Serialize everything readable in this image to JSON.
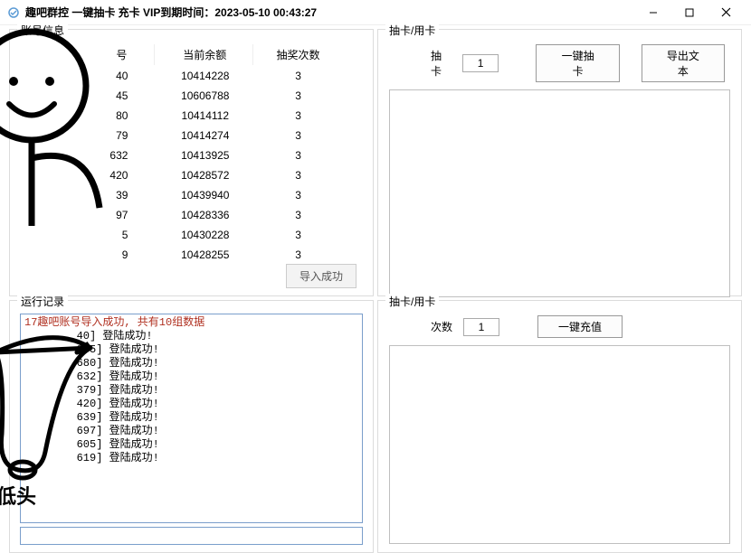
{
  "window": {
    "title": "趣吧群控 一键抽卡  充卡    VIP到期时间：2023-05-10 00:43:27"
  },
  "topLeft": {
    "group_title": "账号信息",
    "columns": {
      "c0": "号",
      "c1": "当前余额",
      "c2": "抽奖次数"
    },
    "rows": [
      {
        "id": "40",
        "balance": "10414228",
        "draws": "3"
      },
      {
        "id": "45",
        "balance": "10606788",
        "draws": "3"
      },
      {
        "id": "80",
        "balance": "10414112",
        "draws": "3"
      },
      {
        "id": "79",
        "balance": "10414274",
        "draws": "3"
      },
      {
        "id": "632",
        "balance": "10413925",
        "draws": "3"
      },
      {
        "id": "420",
        "balance": "10428572",
        "draws": "3"
      },
      {
        "id": "39",
        "balance": "10439940",
        "draws": "3"
      },
      {
        "id": "97",
        "balance": "10428336",
        "draws": "3"
      },
      {
        "id": "5",
        "balance": "10430228",
        "draws": "3"
      },
      {
        "id": "9",
        "balance": "10428255",
        "draws": "3"
      }
    ],
    "import_btn": "导入成功"
  },
  "topRight": {
    "group_title": "抽卡/用卡",
    "label": "抽卡",
    "count": "1",
    "btn1": "一键抽卡",
    "btn2": "导出文本"
  },
  "bottomLeft": {
    "group_title": "运行记录",
    "first_line": "17趣吧账号导入成功, 共有10组数据",
    "lines": [
      "40] 登陆成功!",
      "845] 登陆成功!",
      "680] 登陆成功!",
      "632] 登陆成功!",
      "379] 登陆成功!",
      "420] 登陆成功!",
      "639] 登陆成功!",
      "697] 登陆成功!",
      "605] 登陆成功!",
      "619] 登陆成功!"
    ]
  },
  "bottomRight": {
    "group_title": "抽卡/用卡",
    "label": "次数",
    "count": "1",
    "btn": "一键充值"
  },
  "overlay_text": "低头"
}
